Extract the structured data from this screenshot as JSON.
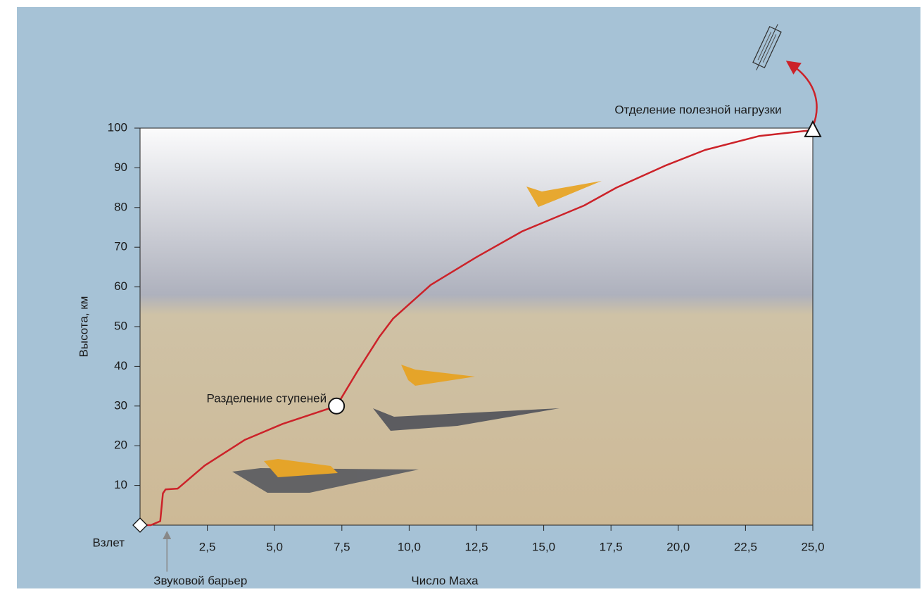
{
  "chart_data": {
    "type": "line",
    "x_label": "Число Маха",
    "y_label": "Высота, км",
    "xlim": [
      0,
      25
    ],
    "ylim": [
      0,
      100
    ],
    "xticks": [
      {
        "value": 2.5,
        "label": "2,5"
      },
      {
        "value": 5,
        "label": "5,0"
      },
      {
        "value": 7.5,
        "label": "7,5"
      },
      {
        "value": 10,
        "label": "10,0"
      },
      {
        "value": 12.5,
        "label": "12,5"
      },
      {
        "value": 15,
        "label": "15,0"
      },
      {
        "value": 17.5,
        "label": "17,5"
      },
      {
        "value": 20,
        "label": "20,0"
      },
      {
        "value": 22.5,
        "label": "22,5"
      },
      {
        "value": 25,
        "label": "25,0"
      }
    ],
    "yticks": [
      10,
      20,
      30,
      40,
      50,
      60,
      70,
      80,
      90,
      100
    ],
    "series": [
      {
        "color": "#cc2229",
        "x": [
          0,
          0.4,
          0.75,
          0.85,
          0.95,
          1.4,
          2.4,
          3.9,
          5.3,
          7.3,
          8.1,
          8.9,
          9.4,
          10.8,
          12.5,
          14.2,
          16.5,
          17.7,
          19.5,
          21,
          23,
          25
        ],
        "values": [
          0,
          0,
          1,
          8,
          9,
          9.2,
          15,
          21.5,
          25.5,
          30,
          39,
          47.5,
          52,
          60.5,
          67.5,
          74,
          80.5,
          85,
          90.5,
          94.5,
          98,
          99.5
        ]
      }
    ],
    "annotations": [
      {
        "text": "Взлет",
        "x": 0,
        "y": 0,
        "marker": "diamond"
      },
      {
        "text": "Звуковой барьер",
        "x": 1
      },
      {
        "text": "Разделение ступеней",
        "x": 7.3,
        "y": 30,
        "marker": "circle"
      },
      {
        "text": "Отделение полезной нагрузки",
        "x": 25,
        "y": 99.5,
        "marker": "triangle"
      }
    ]
  }
}
